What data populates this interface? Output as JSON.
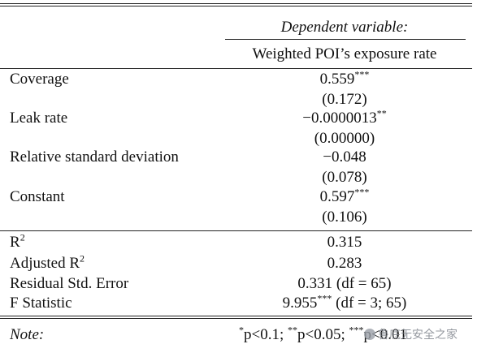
{
  "header": {
    "dep_label": "Dependent variable:",
    "dep_name": "Weighted POI’s exposure rate"
  },
  "rows": [
    {
      "label": "Coverage",
      "coef": "0.559",
      "stars": "***",
      "se": "(0.172)"
    },
    {
      "label": "Leak rate",
      "coef": "−0.0000013",
      "stars": "**",
      "se": "(0.00000)"
    },
    {
      "label": "Relative standard deviation",
      "coef": "−0.048",
      "stars": "",
      "se": "(0.078)"
    },
    {
      "label": "Constant",
      "coef": "0.597",
      "stars": "***",
      "se": "(0.106)"
    }
  ],
  "stats": [
    {
      "label": "R",
      "sup": "2",
      "value": "0.315"
    },
    {
      "label": "Adjusted R",
      "sup": "2",
      "value": "0.283"
    },
    {
      "label": "Residual Std. Error",
      "sup": "",
      "value": "0.331 (df = 65)"
    },
    {
      "label": "F Statistic",
      "sup": "",
      "value_pre": "9.955",
      "value_sup": "***",
      "value_post": " (df = 3; 65)"
    }
  ],
  "note": {
    "label": "Note:",
    "s1": "*",
    "t1": "p<0.1; ",
    "s2": "**",
    "t2": "p<0.05; ",
    "s3": "***",
    "t3": "p<0.01"
  },
  "watermark": "鲁底无安全之家"
}
